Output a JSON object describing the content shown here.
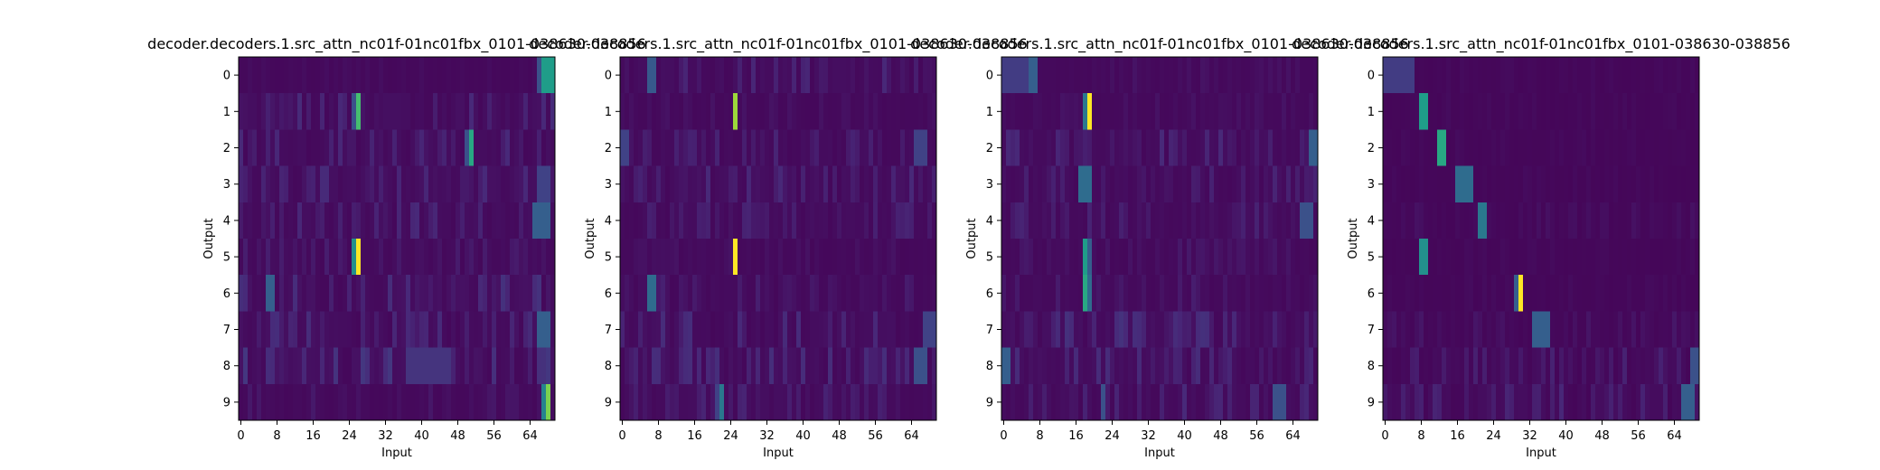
{
  "colormap": {
    "name": "viridis",
    "stops": [
      "#440154",
      "#482878",
      "#3e4989",
      "#31688e",
      "#26828e",
      "#1f9e89",
      "#35b779",
      "#6ece58",
      "#b5de2b",
      "#fde725"
    ]
  },
  "chart_data": [
    {
      "type": "heatmap",
      "title": "decoder.decoders.1.src_attn_nc01f-01nc01fbx_0101-038630-038856",
      "xlabel": "Input",
      "ylabel": "Output",
      "n_cols": 70,
      "n_rows": 10,
      "xticks": [
        0,
        8,
        16,
        24,
        32,
        40,
        48,
        56,
        64
      ],
      "yticks": [
        0,
        1,
        2,
        3,
        4,
        5,
        6,
        7,
        8,
        9
      ],
      "base": 0.02,
      "noise": [
        0.01,
        0.07,
        0.06,
        0.07,
        0.06,
        0.04,
        0.08,
        0.07,
        0.09,
        0.03
      ],
      "peaks": [
        {
          "row": 0,
          "col": 67,
          "width": 3,
          "value": 0.55
        },
        {
          "row": 0,
          "col": 66,
          "width": 1,
          "value": 0.25
        },
        {
          "row": 1,
          "col": 26,
          "width": 1,
          "value": 0.7
        },
        {
          "row": 1,
          "col": 25,
          "width": 1,
          "value": 0.25
        },
        {
          "row": 2,
          "col": 51,
          "width": 1,
          "value": 0.6
        },
        {
          "row": 2,
          "col": 50,
          "width": 1,
          "value": 0.25
        },
        {
          "row": 3,
          "col": 66,
          "width": 3,
          "value": 0.2
        },
        {
          "row": 4,
          "col": 65,
          "width": 4,
          "value": 0.3
        },
        {
          "row": 5,
          "col": 26,
          "width": 1,
          "value": 1.0
        },
        {
          "row": 5,
          "col": 25,
          "width": 1,
          "value": 0.5
        },
        {
          "row": 6,
          "col": 6,
          "width": 2,
          "value": 0.3
        },
        {
          "row": 7,
          "col": 66,
          "width": 3,
          "value": 0.3
        },
        {
          "row": 8,
          "col": 37,
          "width": 10,
          "value": 0.15
        },
        {
          "row": 9,
          "col": 68,
          "width": 1,
          "value": 0.8
        },
        {
          "row": 9,
          "col": 67,
          "width": 1,
          "value": 0.45
        }
      ]
    },
    {
      "type": "heatmap",
      "title": "decoder.decoders.1.src_attn_nc01f-01nc01fbx_0101-038630-038856",
      "xlabel": "Input",
      "ylabel": "Output",
      "n_cols": 70,
      "n_rows": 10,
      "xticks": [
        0,
        8,
        16,
        24,
        32,
        40,
        48,
        56,
        64
      ],
      "yticks": [
        0,
        1,
        2,
        3,
        4,
        5,
        6,
        7,
        8,
        9
      ],
      "base": 0.02,
      "noise": [
        0.06,
        0.02,
        0.05,
        0.06,
        0.05,
        0.02,
        0.05,
        0.07,
        0.07,
        0.05
      ],
      "peaks": [
        {
          "row": 0,
          "col": 6,
          "width": 2,
          "value": 0.28
        },
        {
          "row": 1,
          "col": 25,
          "width": 1,
          "value": 0.85
        },
        {
          "row": 2,
          "col": 0,
          "width": 2,
          "value": 0.2
        },
        {
          "row": 2,
          "col": 65,
          "width": 3,
          "value": 0.2
        },
        {
          "row": 5,
          "col": 25,
          "width": 1,
          "value": 1.0
        },
        {
          "row": 6,
          "col": 6,
          "width": 2,
          "value": 0.35
        },
        {
          "row": 7,
          "col": 67,
          "width": 3,
          "value": 0.2
        },
        {
          "row": 8,
          "col": 65,
          "width": 3,
          "value": 0.25
        },
        {
          "row": 9,
          "col": 22,
          "width": 1,
          "value": 0.4
        },
        {
          "row": 9,
          "col": 21,
          "width": 1,
          "value": 0.2
        }
      ]
    },
    {
      "type": "heatmap",
      "title": "decoder.decoders.1.src_attn_nc01f-01nc01fbx_0101-038630-038856",
      "xlabel": "Input",
      "ylabel": "Output",
      "n_cols": 70,
      "n_rows": 10,
      "xticks": [
        0,
        8,
        16,
        24,
        32,
        40,
        48,
        56,
        64
      ],
      "yticks": [
        0,
        1,
        2,
        3,
        4,
        5,
        6,
        7,
        8,
        9
      ],
      "base": 0.02,
      "noise": [
        0.02,
        0.02,
        0.06,
        0.05,
        0.05,
        0.03,
        0.04,
        0.08,
        0.07,
        0.06
      ],
      "peaks": [
        {
          "row": 0,
          "col": 0,
          "width": 6,
          "value": 0.18
        },
        {
          "row": 0,
          "col": 6,
          "width": 2,
          "value": 0.3
        },
        {
          "row": 1,
          "col": 19,
          "width": 1,
          "value": 1.0
        },
        {
          "row": 1,
          "col": 18,
          "width": 1,
          "value": 0.4
        },
        {
          "row": 2,
          "col": 68,
          "width": 2,
          "value": 0.3
        },
        {
          "row": 3,
          "col": 17,
          "width": 3,
          "value": 0.35
        },
        {
          "row": 4,
          "col": 66,
          "width": 3,
          "value": 0.25
        },
        {
          "row": 5,
          "col": 18,
          "width": 1,
          "value": 0.55
        },
        {
          "row": 5,
          "col": 19,
          "width": 1,
          "value": 0.3
        },
        {
          "row": 6,
          "col": 18,
          "width": 1,
          "value": 0.6
        },
        {
          "row": 6,
          "col": 19,
          "width": 1,
          "value": 0.35
        },
        {
          "row": 8,
          "col": 0,
          "width": 2,
          "value": 0.3
        },
        {
          "row": 9,
          "col": 60,
          "width": 3,
          "value": 0.25
        },
        {
          "row": 9,
          "col": 22,
          "width": 1,
          "value": 0.25
        }
      ]
    },
    {
      "type": "heatmap",
      "title": "decoder.decoders.1.src_attn_nc01f-01nc01fbx_0101-038630-038856",
      "xlabel": "Input",
      "ylabel": "Output",
      "n_cols": 70,
      "n_rows": 10,
      "xticks": [
        0,
        8,
        16,
        24,
        32,
        40,
        48,
        56,
        64
      ],
      "yticks": [
        0,
        1,
        2,
        3,
        4,
        5,
        6,
        7,
        8,
        9
      ],
      "base": 0.015,
      "noise": [
        0.01,
        0.01,
        0.01,
        0.01,
        0.02,
        0.01,
        0.01,
        0.03,
        0.05,
        0.06
      ],
      "peaks": [
        {
          "row": 0,
          "col": 0,
          "width": 7,
          "value": 0.18
        },
        {
          "row": 1,
          "col": 8,
          "width": 2,
          "value": 0.55
        },
        {
          "row": 2,
          "col": 12,
          "width": 2,
          "value": 0.6
        },
        {
          "row": 3,
          "col": 16,
          "width": 4,
          "value": 0.35
        },
        {
          "row": 4,
          "col": 21,
          "width": 2,
          "value": 0.4
        },
        {
          "row": 5,
          "col": 8,
          "width": 2,
          "value": 0.5
        },
        {
          "row": 6,
          "col": 30,
          "width": 1,
          "value": 1.0
        },
        {
          "row": 6,
          "col": 29,
          "width": 1,
          "value": 0.3
        },
        {
          "row": 7,
          "col": 33,
          "width": 4,
          "value": 0.3
        },
        {
          "row": 8,
          "col": 68,
          "width": 2,
          "value": 0.25
        },
        {
          "row": 9,
          "col": 66,
          "width": 3,
          "value": 0.3
        }
      ]
    }
  ]
}
